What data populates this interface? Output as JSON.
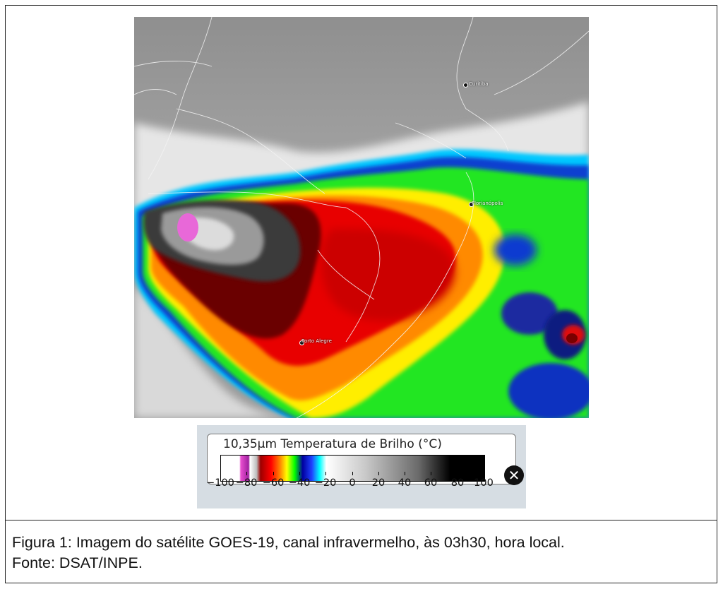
{
  "map": {
    "cities": [
      {
        "id": "curitiba",
        "label": "Curitiba"
      },
      {
        "id": "florianopolis",
        "label": "Florianópolis"
      },
      {
        "id": "porto_alegre",
        "label": "Porto Alegre"
      }
    ]
  },
  "legend": {
    "title": "10,35μm Temperatura de Brilho (°C)",
    "ticks": [
      "−100",
      "−80",
      "−60",
      "−40",
      "−20",
      "0",
      "20",
      "40",
      "60",
      "80",
      "100"
    ],
    "close_icon": "close-circle-icon"
  },
  "caption": {
    "line1": "Figura 1: Imagem do satélite GOES-19, canal infravermelho, às 03h30, hora local.",
    "line2": "Fonte: DSAT/INPE."
  }
}
